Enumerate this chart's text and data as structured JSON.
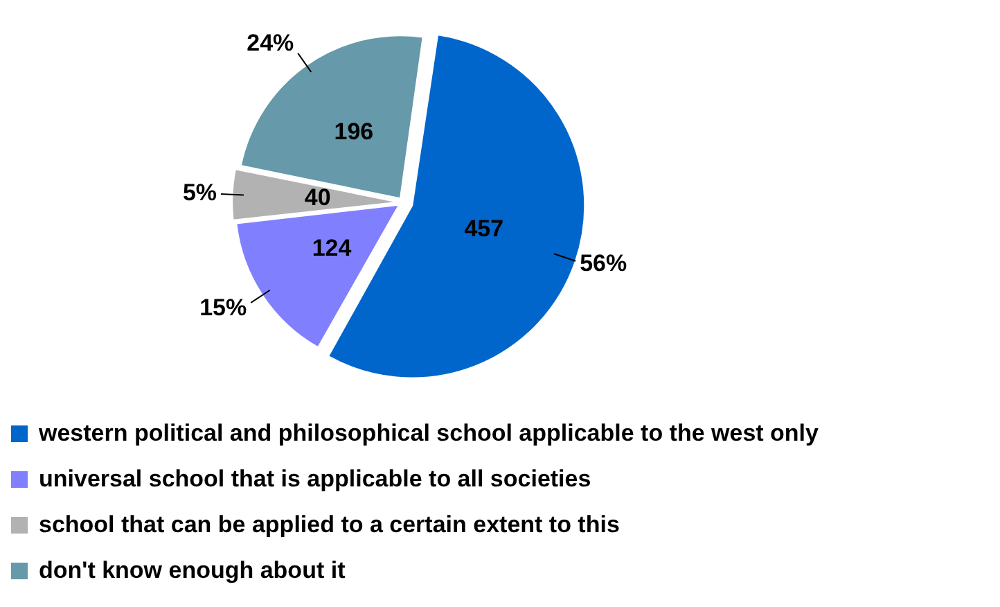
{
  "chart_data": {
    "type": "pie",
    "categories": [
      "western political and philosophical school applicable to the west only",
      "universal school that is applicable to all societies",
      "school that can be applied to a certain extent to this",
      "don't know enough about it"
    ],
    "values": [
      56,
      15,
      5,
      24
    ],
    "colors": [
      "#0066cc",
      "#8080ff",
      "#b2b2b2",
      "#6699aa"
    ],
    "value_labels": [
      "56%",
      "15%",
      "5%",
      "24%"
    ],
    "annotations": [
      {
        "text": "457",
        "x": "western political and philosophical school applicable to the west only"
      },
      {
        "text": "124",
        "x": "universal school that is applicable to all societies"
      },
      {
        "text": "40",
        "x": "school that can be applied to a certain extent to this"
      },
      {
        "text": "196",
        "x": "don't know enough about it"
      }
    ],
    "legend": "bottom"
  }
}
